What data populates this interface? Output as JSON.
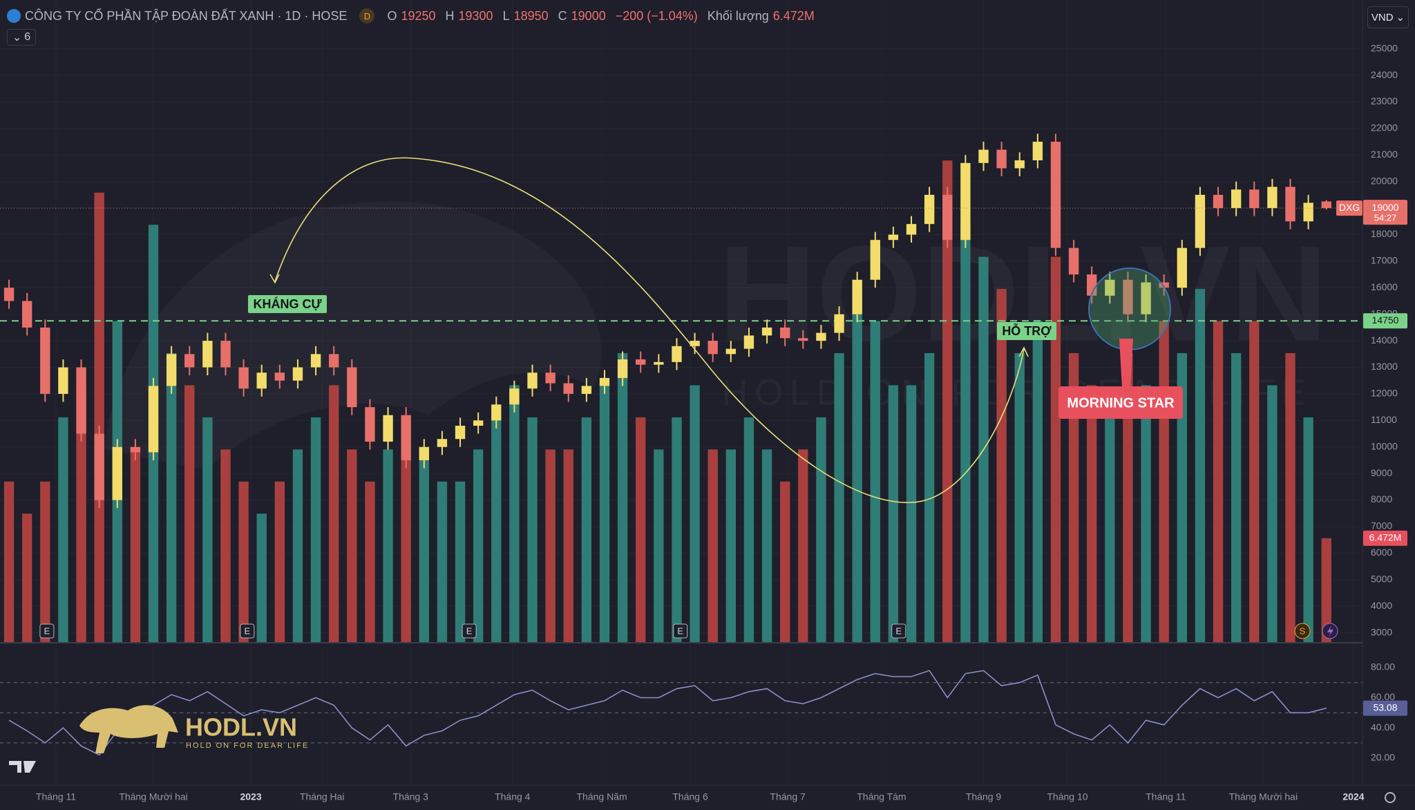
{
  "header": {
    "symbol": "CÔNG TY CỔ PHẦN TẬP ĐOÀN ĐẤT XANH · 1D · HOSE",
    "badge": "D",
    "o": "O",
    "h": "H",
    "l": "L",
    "c": "C",
    "change": "−200 (−1.04%)",
    "volume_label": "Khối lượng",
    "indicator_count": "6"
  },
  "toolbar": {
    "currency": "VND"
  },
  "chart_data": [
    {
      "type": "candlestick",
      "symbol_tag": "DXG",
      "countdown": "54:27",
      "open": [
        16000,
        15500,
        14500,
        12000,
        13000,
        10500,
        8000,
        10000,
        9800,
        12300,
        13500,
        13000,
        14000,
        13000,
        12200,
        12800,
        12500,
        13000,
        13500,
        13000,
        11500,
        10200,
        11200,
        9500,
        10000,
        10300,
        10800,
        11000,
        11600,
        12200,
        12800,
        12400,
        12000,
        12300,
        12600,
        13300,
        13100,
        13200,
        13800,
        14000,
        13500,
        13700,
        14200,
        14500,
        14100,
        14000,
        14300,
        15000,
        16300,
        17800,
        18000,
        18400,
        19500,
        17800,
        20700,
        21200,
        20500,
        20800,
        21500,
        17500,
        16500,
        15700,
        16300,
        15000,
        16200,
        16000,
        17500,
        19500,
        19000,
        19700,
        19000,
        19800,
        18500,
        19250
      ],
      "high": [
        16300,
        15800,
        14800,
        13300,
        13300,
        10800,
        10300,
        10300,
        12600,
        13800,
        13800,
        14300,
        14300,
        13300,
        13100,
        13100,
        13300,
        13800,
        13800,
        13300,
        11800,
        11500,
        11500,
        10300,
        10600,
        11100,
        11300,
        11900,
        12500,
        13100,
        13100,
        12700,
        12600,
        12900,
        13600,
        13600,
        13500,
        14100,
        14300,
        14300,
        14000,
        14500,
        14800,
        14800,
        14400,
        14600,
        15300,
        16600,
        18100,
        18300,
        18700,
        19800,
        19800,
        21000,
        21500,
        21500,
        21100,
        21800,
        21800,
        17800,
        16800,
        16600,
        16600,
        16500,
        16500,
        17800,
        19800,
        19800,
        20000,
        20000,
        20100,
        20100,
        19500,
        19300
      ],
      "low": [
        15200,
        14200,
        11700,
        11700,
        10200,
        7700,
        7700,
        9500,
        9500,
        12000,
        12700,
        12700,
        12700,
        11900,
        11900,
        12200,
        12200,
        12700,
        12700,
        11200,
        9900,
        9900,
        9200,
        9200,
        9700,
        10000,
        10500,
        10700,
        11300,
        11900,
        12100,
        11700,
        11700,
        12000,
        12300,
        12800,
        12800,
        12900,
        13500,
        13200,
        13200,
        13400,
        13900,
        13800,
        13700,
        13700,
        14000,
        14700,
        16000,
        17500,
        17700,
        18100,
        17500,
        17500,
        20400,
        20200,
        20200,
        20500,
        17200,
        16200,
        15400,
        15400,
        14700,
        14700,
        15700,
        15700,
        17200,
        18700,
        18700,
        18700,
        18700,
        18200,
        18200,
        18950
      ],
      "close": [
        15500,
        14500,
        12000,
        13000,
        10500,
        8000,
        10000,
        9800,
        12300,
        13500,
        13000,
        14000,
        13000,
        12200,
        12800,
        12500,
        13000,
        13500,
        13000,
        11500,
        10200,
        11200,
        9500,
        10000,
        10300,
        10800,
        11000,
        11600,
        12200,
        12800,
        12400,
        12000,
        12300,
        12600,
        13300,
        13100,
        13200,
        13800,
        14000,
        13500,
        13700,
        14200,
        14500,
        14100,
        14000,
        14300,
        15000,
        16300,
        17800,
        18000,
        18400,
        19500,
        17800,
        20700,
        21200,
        20500,
        20800,
        21500,
        17500,
        16500,
        15700,
        16300,
        15000,
        16200,
        16000,
        17500,
        19500,
        19000,
        19700,
        19000,
        19800,
        18500,
        19200,
        19000
      ],
      "up_color": "#f2dc6b",
      "down_color": "#e8706a",
      "xlim": [
        -0.5,
        75
      ],
      "ylim": [
        2650,
        26840
      ],
      "xticks": [
        {
          "value": 2.6,
          "label": "Tháng 11"
        },
        {
          "value": 8,
          "label": "Tháng Mười hai"
        },
        {
          "value": 13.4,
          "label": "2023"
        },
        {
          "value": 17.35,
          "label": "Tháng Hai"
        },
        {
          "value": 22.25,
          "label": "Tháng 3"
        },
        {
          "value": 27.9,
          "label": "Tháng 4"
        },
        {
          "value": 32.85,
          "label": "Tháng Năm"
        },
        {
          "value": 37.75,
          "label": "Tháng 6"
        },
        {
          "value": 43.15,
          "label": "Tháng 7"
        },
        {
          "value": 48.35,
          "label": "Tháng Tám"
        },
        {
          "value": 54,
          "label": "Tháng 9"
        },
        {
          "value": 58.65,
          "label": "Tháng 10"
        },
        {
          "value": 64.1,
          "label": "Tháng 11"
        },
        {
          "value": 69.5,
          "label": "Tháng Mười hai"
        },
        {
          "value": 74.5,
          "label": "2024"
        }
      ],
      "yticks": [
        3000,
        4000,
        5000,
        6000,
        7000,
        8000,
        9000,
        10000,
        11000,
        12000,
        13000,
        14000,
        15000,
        16000,
        17000,
        18000,
        19000,
        20000,
        21000,
        22000,
        23000,
        24000,
        25000
      ],
      "grid": true,
      "hline": {
        "value": 14750,
        "color": "#7bd389"
      }
    },
    {
      "type": "bar",
      "values": [
        10,
        8,
        10,
        14,
        16,
        28,
        20,
        12,
        26,
        18,
        16,
        14,
        12,
        10,
        8,
        10,
        12,
        14,
        16,
        12,
        10,
        12,
        14,
        12,
        10,
        10,
        12,
        14,
        16,
        14,
        12,
        12,
        14,
        16,
        18,
        14,
        12,
        14,
        16,
        12,
        12,
        14,
        12,
        10,
        12,
        14,
        18,
        22,
        20,
        16,
        16,
        18,
        30,
        26,
        24,
        22,
        18,
        20,
        24,
        18,
        16,
        14,
        18,
        16,
        20,
        18,
        22,
        20,
        18,
        20,
        16,
        18,
        14,
        6.472
      ],
      "value_labels": [
        null,
        null,
        null,
        null,
        null,
        null,
        null,
        null,
        null,
        null,
        null,
        null,
        null,
        null,
        null,
        null,
        null,
        null,
        null,
        null,
        null,
        null,
        null,
        null,
        null,
        null,
        null,
        null,
        null,
        null,
        null,
        null,
        null,
        null,
        null,
        null,
        null,
        null,
        null,
        null,
        null,
        null,
        null,
        null,
        null,
        null,
        null,
        null,
        null,
        null,
        null,
        null,
        null,
        null,
        null,
        null,
        null,
        null,
        null,
        null,
        null,
        null,
        null,
        null,
        null,
        null,
        null,
        null,
        null,
        null,
        null,
        null,
        null,
        "6.472M"
      ],
      "up_color": "#2f7d76",
      "down_color": "#a9403f",
      "ylim": [
        0,
        40
      ],
      "events": [
        "E",
        "E",
        "E",
        "E",
        "E"
      ],
      "event_positions": [
        2.1,
        13.2,
        25.5,
        37.2,
        49.3
      ],
      "extra_markers": [
        "S"
      ]
    },
    {
      "type": "line",
      "values": [
        45,
        38,
        30,
        40,
        28,
        22,
        38,
        36,
        55,
        62,
        58,
        64,
        56,
        48,
        52,
        50,
        55,
        60,
        55,
        40,
        32,
        42,
        28,
        35,
        38,
        45,
        48,
        55,
        62,
        65,
        58,
        52,
        55,
        58,
        65,
        60,
        60,
        66,
        68,
        58,
        60,
        64,
        66,
        58,
        56,
        60,
        66,
        72,
        76,
        74,
        74,
        78,
        60,
        76,
        78,
        68,
        70,
        75,
        42,
        36,
        32,
        42,
        30,
        45,
        42,
        55,
        66,
        60,
        66,
        58,
        64,
        50,
        50,
        53.08
      ],
      "color": "#8a8fc4",
      "ylim": [
        2,
        96
      ],
      "yticks": [
        {
          "value": 20,
          "label": "20.00"
        },
        {
          "value": 40,
          "label": "40.00"
        },
        {
          "value": 60,
          "label": "60.00"
        },
        {
          "value": 80,
          "label": "80.00"
        }
      ],
      "bands": [
        30,
        50,
        70
      ]
    }
  ],
  "annotations": {
    "resistance": "KHÁNG CỰ",
    "support": "HỖ TRỢ",
    "pattern": "MORNING STAR"
  },
  "watermark": {
    "brand": "HODL.VN",
    "slogan": "HOLD ON FOR DEAR LIFE"
  },
  "logo": {
    "brand": "HODL.VN",
    "slogan": "HOLD ON FOR DEAR LIFE"
  }
}
